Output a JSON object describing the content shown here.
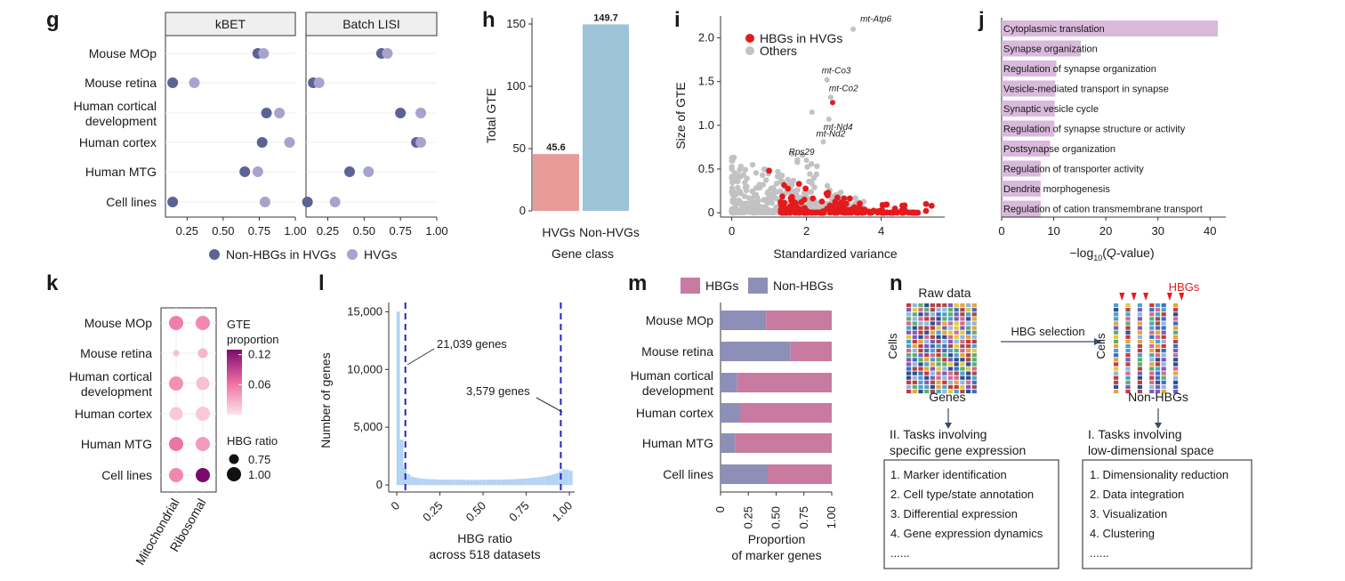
{
  "panels": {
    "g": "g",
    "h": "h",
    "i": "i",
    "j": "j",
    "k": "k",
    "l": "l",
    "m": "m",
    "n": "n"
  },
  "colors": {
    "dark_purple": "#5c6394",
    "light_purple": "#a7a3cc",
    "hvg_bar": "#e89b98",
    "nonhvg_bar": "#9cc3d8",
    "red": "#e41a1c",
    "grey": "#c2c2c2",
    "term_bar": "#d9b9dc",
    "hbg_pink": "#c97aa0",
    "nonhbg_purple": "#8e8fb8",
    "hist": "#b3d4f5",
    "dashed": "#2323c8"
  },
  "chart_data": [
    {
      "id": "g",
      "type": "scatter",
      "facets": [
        "kBET",
        "Batch LISI"
      ],
      "categories": [
        "Mouse MOp",
        "Mouse retina",
        "Human cortical development",
        "Human cortex",
        "Human MTG",
        "Cell lines"
      ],
      "category_lines": [
        [
          "Mouse MOp"
        ],
        [
          "Mouse retina"
        ],
        [
          "Human cortical",
          "development"
        ],
        [
          "Human cortex"
        ],
        [
          "Human MTG"
        ],
        [
          "Cell lines"
        ]
      ],
      "xlim": [
        0.1,
        1.0
      ],
      "xticks": [
        "0.25",
        "0.50",
        "0.75",
        "1.00"
      ],
      "xtick_values": [
        0.25,
        0.5,
        0.75,
        1.0
      ],
      "series": [
        {
          "name": "Non-HBGs in HVGs",
          "kBET": [
            0.74,
            0.15,
            0.8,
            0.77,
            0.65,
            0.15
          ],
          "Batch LISI": [
            0.62,
            0.15,
            0.75,
            0.86,
            0.4,
            0.11
          ]
        },
        {
          "name": "HVGs",
          "kBET": [
            0.78,
            0.3,
            0.89,
            0.96,
            0.74,
            0.79
          ],
          "Batch LISI": [
            0.66,
            0.19,
            0.89,
            0.89,
            0.53,
            0.3
          ]
        }
      ],
      "legend": [
        "Non-HBGs in HVGs",
        "HVGs"
      ]
    },
    {
      "id": "h",
      "type": "bar",
      "categories": [
        "HVGs",
        "Non-HVGs"
      ],
      "values": [
        45.6,
        149.7
      ],
      "value_labels": [
        "45.6",
        "149.7"
      ],
      "ylabel": "Total GTE",
      "xlabel": "Gene class",
      "ylim": [
        0,
        155
      ],
      "yticks": [
        "0",
        "50",
        "100",
        "150"
      ],
      "ytick_values": [
        0,
        50,
        100,
        150
      ]
    },
    {
      "id": "i",
      "type": "scatter",
      "xlabel": "Standardized variance",
      "ylabel": "Size of GTE",
      "xlim": [
        -0.3,
        5.7
      ],
      "ylim": [
        -0.05,
        2.25
      ],
      "xticks": [
        "0",
        "2",
        "4"
      ],
      "xtick_values": [
        0,
        2,
        4
      ],
      "yticks": [
        "0",
        "0.5",
        "1.0",
        "1.5",
        "2.0"
      ],
      "ytick_values": [
        0,
        0.5,
        1.0,
        1.5,
        2.0
      ],
      "legend": [
        "HBGs in HVGs",
        "Others"
      ],
      "annotations": [
        {
          "label": "mt-Atp6",
          "x": 3.25,
          "y": 2.1
        },
        {
          "label": "mt-Co3",
          "x": 2.55,
          "y": 1.52
        },
        {
          "label": "mt-Co2",
          "x": 2.65,
          "y": 1.32
        },
        {
          "label": "mt-Nd4",
          "x": 2.6,
          "y": 1.07
        },
        {
          "label": "mt-Nd2",
          "x": 2.45,
          "y": 0.81
        },
        {
          "label": "Rps29",
          "x": 2.0,
          "y": 0.6
        }
      ],
      "labeled_points": [
        {
          "x": 3.25,
          "y": 2.1
        },
        {
          "x": 2.55,
          "y": 1.52
        },
        {
          "x": 2.65,
          "y": 1.32
        },
        {
          "x": 2.7,
          "y": 1.26
        },
        {
          "x": 2.6,
          "y": 1.07
        },
        {
          "x": 2.45,
          "y": 0.81
        },
        {
          "x": 2.0,
          "y": 0.6
        },
        {
          "x": 2.15,
          "y": 1.15
        }
      ]
    },
    {
      "id": "j",
      "type": "bar",
      "orientation": "horizontal",
      "categories": [
        "Cytoplasmic translation",
        "Synapse organization",
        "Regulation of synapse organization",
        "Vesicle-mediated transport in synapse",
        "Synaptic vesicle cycle",
        "Regulation of synapse structure or activity",
        "Postsynapse organization",
        "Regulation of transporter activity",
        "Dendrite morphogenesis",
        "Regulation of cation transmembrane transport"
      ],
      "values": [
        41.5,
        15.2,
        10.5,
        10.3,
        10.2,
        10.1,
        9.3,
        7.5,
        7.5,
        7.5
      ],
      "xlabel": "−log10(Q-value)",
      "xlabel_parts": [
        "−log",
        "10",
        "(",
        "Q",
        "-value)"
      ],
      "xlim": [
        0,
        42
      ],
      "xticks": [
        "0",
        "10",
        "20",
        "30",
        "40"
      ],
      "xtick_values": [
        0,
        10,
        20,
        30,
        40
      ]
    },
    {
      "id": "k",
      "type": "heatmap",
      "rows": [
        "Mouse MOp",
        "Mouse retina",
        "Human cortical development",
        "Human cortex",
        "Human MTG",
        "Cell lines"
      ],
      "row_lines": [
        [
          "Mouse MOp"
        ],
        [
          "Mouse retina"
        ],
        [
          "Human cortical",
          "development"
        ],
        [
          "Human cortex"
        ],
        [
          "Human MTG"
        ],
        [
          "Cell lines"
        ]
      ],
      "columns": [
        "Mitochondrial",
        "Ribosomal"
      ],
      "gte_proportion": [
        [
          0.055,
          0.05
        ],
        [
          0.02,
          0.025
        ],
        [
          0.045,
          0.02
        ],
        [
          0.015,
          0.015
        ],
        [
          0.06,
          0.04
        ],
        [
          0.05,
          0.13
        ]
      ],
      "hbg_ratio": [
        [
          1.0,
          1.0
        ],
        [
          0.55,
          0.75
        ],
        [
          1.0,
          0.95
        ],
        [
          0.95,
          1.0
        ],
        [
          1.0,
          1.0
        ],
        [
          1.0,
          1.0
        ]
      ],
      "legend_gte_title": [
        "GTE",
        "proportion"
      ],
      "legend_gte_ticks": [
        "0.12",
        "0.06"
      ],
      "legend_gte_values": [
        0.12,
        0.06
      ],
      "legend_ratio_title": "HBG ratio",
      "legend_ratio_entries": [
        "0.75",
        "1.00"
      ],
      "legend_ratio_values": [
        0.75,
        1.0
      ]
    },
    {
      "id": "l",
      "type": "bar",
      "subtype": "histogram",
      "xlabel": [
        "HBG ratio",
        "across 518 datasets"
      ],
      "ylabel": "Number of genes",
      "xlim": [
        0,
        1.02
      ],
      "ylim": [
        0,
        15800
      ],
      "xticks": [
        "0",
        "0.25",
        "0.50",
        "0.75",
        "1.00"
      ],
      "xtick_values": [
        0,
        0.25,
        0.5,
        0.75,
        1.0
      ],
      "yticks": [
        "0",
        "5,000",
        "10,000",
        "15,000"
      ],
      "ytick_values": [
        0,
        5000,
        10000,
        15000
      ],
      "bin_start": 0,
      "bin_width": 0.02,
      "counts": [
        15000,
        3900,
        1400,
        900,
        700,
        620,
        560,
        520,
        500,
        480,
        470,
        460,
        450,
        445,
        440,
        435,
        430,
        430,
        425,
        425,
        420,
        420,
        420,
        420,
        425,
        425,
        430,
        430,
        435,
        440,
        445,
        450,
        460,
        470,
        480,
        500,
        520,
        540,
        560,
        590,
        620,
        660,
        700,
        760,
        820,
        900,
        1000,
        1150,
        1350,
        1300,
        1200
      ],
      "dashed_lines": [
        0.05,
        0.95
      ],
      "annotations": [
        "21,039 genes",
        "3,579 genes"
      ]
    },
    {
      "id": "m",
      "type": "bar",
      "orientation": "horizontal",
      "stacked": true,
      "categories": [
        "Mouse MOp",
        "Mouse retina",
        "Human cortical development",
        "Human cortex",
        "Human MTG",
        "Cell lines"
      ],
      "category_lines": [
        [
          "Mouse MOp"
        ],
        [
          "Mouse retina"
        ],
        [
          "Human cortical",
          "development"
        ],
        [
          "Human cortex"
        ],
        [
          "Human MTG"
        ],
        [
          "Cell lines"
        ]
      ],
      "series": [
        {
          "name": "Non-HBGs",
          "values": [
            0.41,
            0.63,
            0.15,
            0.18,
            0.13,
            0.42
          ]
        },
        {
          "name": "HBGs",
          "values": [
            0.59,
            0.37,
            0.85,
            0.82,
            0.87,
            0.58
          ]
        }
      ],
      "legend": [
        "HBGs",
        "Non-HBGs"
      ],
      "xlabel": [
        "Proportion",
        "of marker genes"
      ],
      "xlim": [
        0,
        1
      ],
      "xticks": [
        "0",
        "0.25",
        "0.50",
        "0.75",
        "1.00"
      ],
      "xtick_values": [
        0,
        0.25,
        0.5,
        0.75,
        1.0
      ]
    }
  ],
  "panel_n": {
    "raw_data": "Raw data",
    "cells": "Cells",
    "genes": "Genes",
    "hbg_selection": "HBG selection",
    "hbgs": "HBGs",
    "non_hbgs": "Non-HBGs",
    "left_title": [
      "II. Tasks involving",
      "specific gene expression"
    ],
    "right_title": [
      "I. Tasks involving",
      "low-dimensional space"
    ],
    "left_items": [
      "1. Marker identification",
      "2. Cell type/state annotation",
      "3. Differential expression",
      "4. Gene expression dynamics",
      "......"
    ],
    "right_items": [
      "1. Dimensionality reduction",
      "2. Data integration",
      "3. Visualization",
      "4. Clustering",
      "......"
    ],
    "palette": [
      "#c23b3b",
      "#e8a33b",
      "#3b6fc2",
      "#4aa3c9",
      "#7d5cb8",
      "#d36b8f",
      "#5cae6e",
      "#a84a4a",
      "#2f4f8f",
      "#e2c840",
      "#8fb8e0",
      "#f0f0f0"
    ]
  }
}
